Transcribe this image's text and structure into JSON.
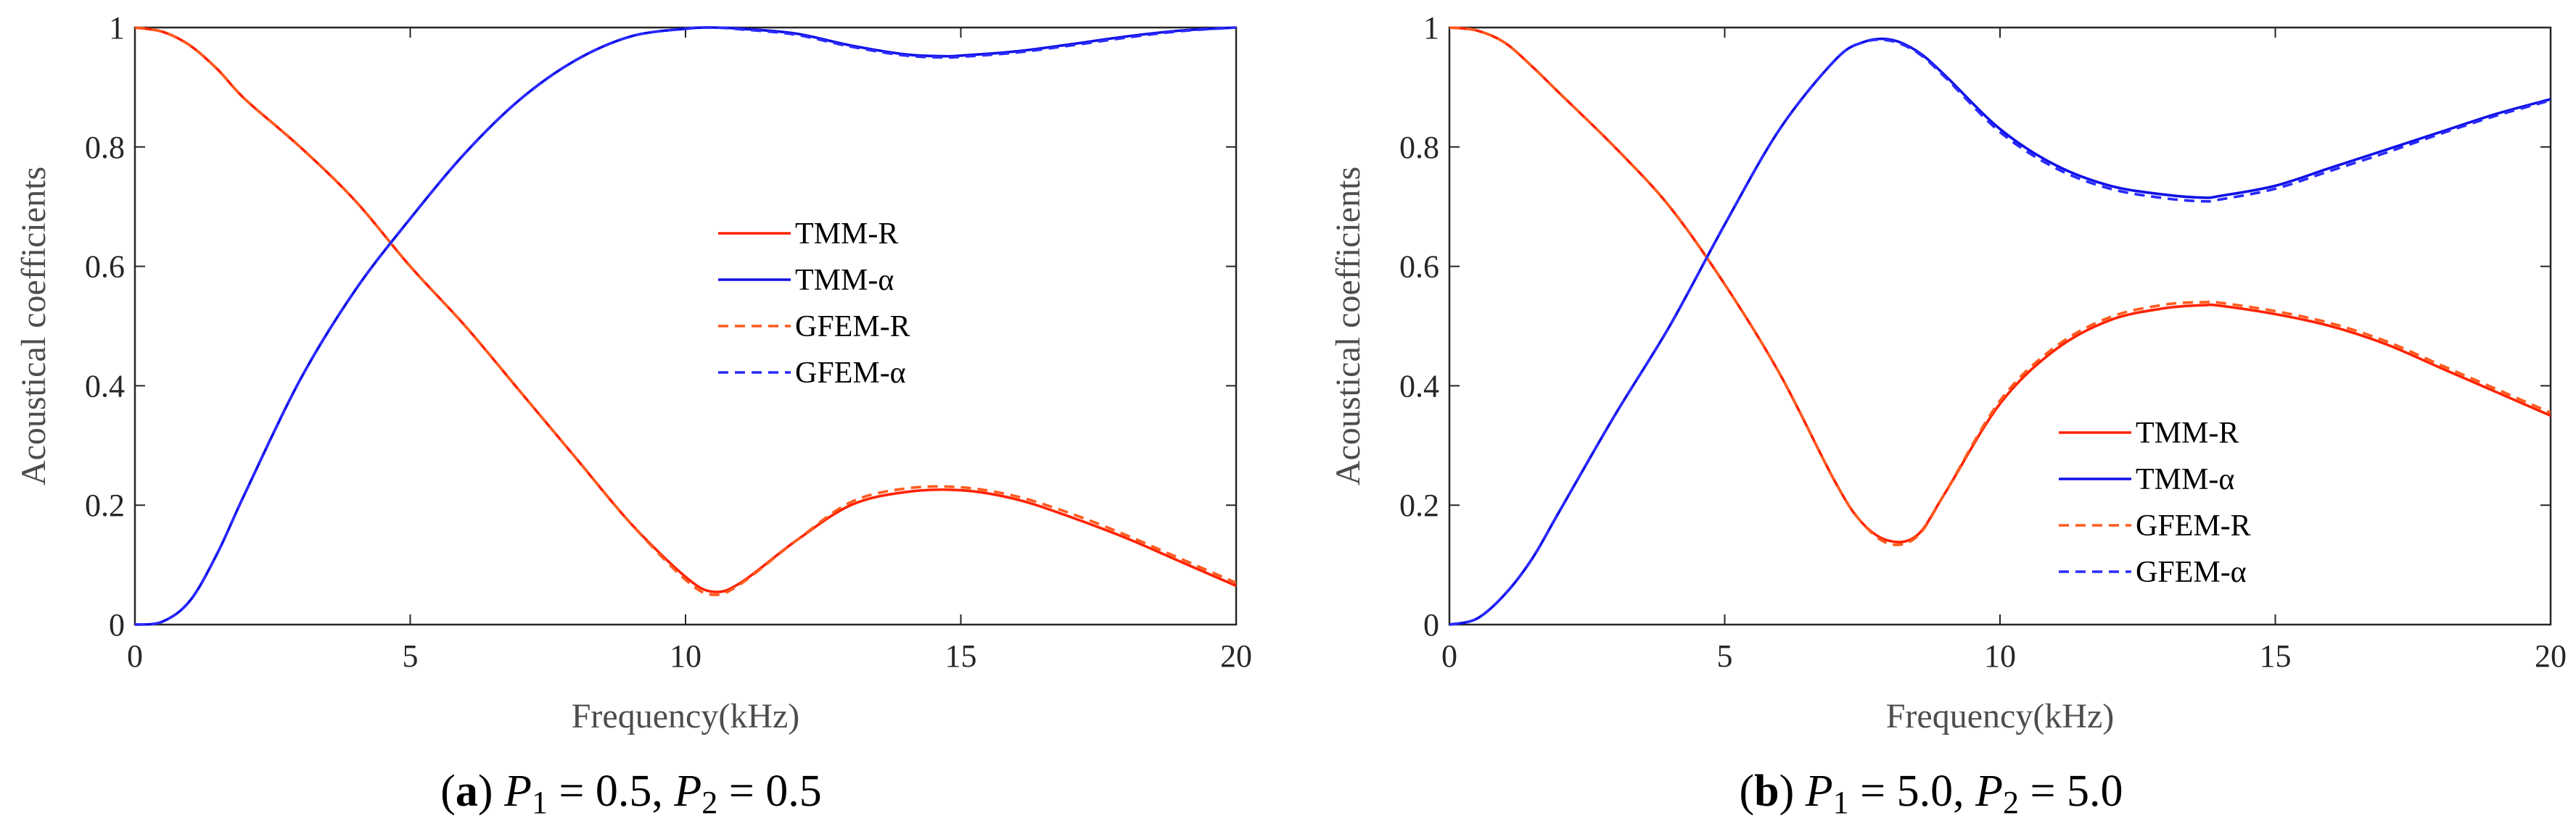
{
  "colors": {
    "R": "#ff2200",
    "alpha": "#1010e6",
    "GFEM_R": "#ff5a1e",
    "GFEM_alpha": "#2a2aff",
    "axis": "#262626",
    "label": "#4d4d4d"
  },
  "chart_data": [
    {
      "type": "line",
      "panel_letter": "a",
      "caption": {
        "p1_symbol": "P",
        "p1_sub": "1",
        "p1_value": " = 0.5, ",
        "p2_symbol": "P",
        "p2_sub": "2",
        "p2_value": " = 0.5"
      },
      "xlabel": "Frequency(kHz)",
      "ylabel": "Acoustical coefficients",
      "xlim": [
        0,
        20
      ],
      "ylim": [
        0,
        1
      ],
      "xticks": [
        0,
        5,
        10,
        15,
        20
      ],
      "yticks": [
        0,
        0.2,
        0.4,
        0.6,
        0.8,
        1
      ],
      "ytick_labels": [
        "0",
        "0.2",
        "0.4",
        "0.6",
        "0.8",
        "1"
      ],
      "legend_position": "center-right",
      "legend": [
        "TMM-R",
        "TMM-α",
        "GFEM-R",
        "GFEM-α"
      ],
      "series": [
        {
          "name": "TMM-R",
          "style": "solid",
          "color_key": "R",
          "x": [
            0,
            0.5,
            1,
            1.5,
            2,
            3,
            4,
            5,
            6,
            7,
            8,
            9,
            10,
            10.5,
            11,
            12,
            13,
            14,
            15,
            16,
            17,
            18,
            19,
            20
          ],
          "y": [
            1.0,
            0.993,
            0.97,
            0.93,
            0.88,
            0.8,
            0.71,
            0.6,
            0.5,
            0.39,
            0.28,
            0.17,
            0.08,
            0.055,
            0.07,
            0.14,
            0.2,
            0.222,
            0.225,
            0.21,
            0.18,
            0.145,
            0.105,
            0.065
          ]
        },
        {
          "name": "TMM-α",
          "style": "solid",
          "color_key": "alpha",
          "x": [
            0,
            0.5,
            1,
            1.5,
            2,
            3,
            4,
            5,
            6,
            7,
            8,
            9,
            10,
            10.5,
            11,
            12,
            13,
            14,
            14.7,
            15,
            16,
            17,
            18,
            19,
            20
          ],
          "y": [
            0.0,
            0.005,
            0.04,
            0.12,
            0.22,
            0.41,
            0.56,
            0.68,
            0.79,
            0.88,
            0.945,
            0.985,
            0.998,
            1.0,
            0.998,
            0.99,
            0.97,
            0.955,
            0.952,
            0.953,
            0.96,
            0.972,
            0.985,
            0.995,
            1.0
          ]
        },
        {
          "name": "GFEM-R",
          "style": "dashed",
          "color_key": "GFEM_R",
          "x": [
            0,
            0.5,
            1,
            1.5,
            2,
            3,
            4,
            5,
            6,
            7,
            8,
            9,
            10,
            10.5,
            11,
            12,
            13,
            14,
            15,
            16,
            17,
            18,
            19,
            20
          ],
          "y": [
            1.0,
            0.993,
            0.97,
            0.93,
            0.88,
            0.8,
            0.71,
            0.6,
            0.5,
            0.39,
            0.28,
            0.17,
            0.075,
            0.05,
            0.068,
            0.14,
            0.205,
            0.228,
            0.23,
            0.215,
            0.186,
            0.15,
            0.11,
            0.07
          ]
        },
        {
          "name": "GFEM-α",
          "style": "dashed",
          "color_key": "GFEM_alpha",
          "x": [
            0,
            0.5,
            1,
            1.5,
            2,
            3,
            4,
            5,
            6,
            7,
            8,
            9,
            10,
            10.5,
            11,
            12,
            13,
            14,
            14.7,
            15,
            16,
            17,
            18,
            19,
            20
          ],
          "y": [
            0.0,
            0.005,
            0.04,
            0.12,
            0.22,
            0.41,
            0.56,
            0.68,
            0.79,
            0.88,
            0.945,
            0.985,
            0.998,
            1.0,
            0.997,
            0.988,
            0.968,
            0.953,
            0.95,
            0.951,
            0.958,
            0.97,
            0.983,
            0.994,
            1.0
          ]
        }
      ]
    },
    {
      "type": "line",
      "panel_letter": "b",
      "caption": {
        "p1_symbol": "P",
        "p1_sub": "1",
        "p1_value": " = 5.0, ",
        "p2_symbol": "P",
        "p2_sub": "2",
        "p2_value": " = 5.0"
      },
      "xlabel": "Frequency(kHz)",
      "ylabel": "Acoustical coefficients",
      "xlim": [
        0,
        20
      ],
      "ylim": [
        0,
        1
      ],
      "xticks": [
        0,
        5,
        10,
        15,
        20
      ],
      "yticks": [
        0,
        0.2,
        0.4,
        0.6,
        0.8,
        1
      ],
      "ytick_labels": [
        "0",
        "0.2",
        "0.4",
        "0.6",
        "0.8",
        "1"
      ],
      "legend_position": "bottom-right",
      "legend": [
        "TMM-R",
        "TMM-α",
        "GFEM-R",
        "GFEM-α"
      ],
      "series": [
        {
          "name": "TMM-R",
          "style": "solid",
          "color_key": "R",
          "x": [
            0,
            0.5,
            1,
            1.5,
            2,
            3,
            4,
            5,
            6,
            7,
            7.5,
            8,
            8.5,
            9,
            10,
            11,
            12,
            13,
            13.7,
            14,
            15,
            16,
            17,
            18,
            19,
            20
          ],
          "y": [
            1.0,
            0.995,
            0.975,
            0.935,
            0.89,
            0.8,
            0.7,
            0.57,
            0.42,
            0.24,
            0.17,
            0.14,
            0.15,
            0.22,
            0.37,
            0.46,
            0.51,
            0.53,
            0.535,
            0.534,
            0.52,
            0.5,
            0.47,
            0.43,
            0.39,
            0.35
          ]
        },
        {
          "name": "TMM-α",
          "style": "solid",
          "color_key": "alpha",
          "x": [
            0,
            0.5,
            1,
            1.5,
            2,
            3,
            4,
            5,
            6,
            7,
            7.5,
            8,
            8.5,
            9,
            10,
            11,
            12,
            13,
            13.7,
            14,
            15,
            16,
            17,
            18,
            19,
            20
          ],
          "y": [
            0.0,
            0.01,
            0.05,
            0.11,
            0.19,
            0.35,
            0.5,
            0.67,
            0.83,
            0.945,
            0.975,
            0.98,
            0.96,
            0.92,
            0.83,
            0.77,
            0.735,
            0.72,
            0.715,
            0.718,
            0.735,
            0.765,
            0.795,
            0.825,
            0.855,
            0.88
          ]
        },
        {
          "name": "GFEM-R",
          "style": "dashed",
          "color_key": "GFEM_R",
          "x": [
            0,
            0.5,
            1,
            1.5,
            2,
            3,
            4,
            5,
            6,
            7,
            7.5,
            8,
            8.5,
            9,
            10,
            11,
            12,
            13,
            13.7,
            14,
            15,
            16,
            17,
            18,
            19,
            20
          ],
          "y": [
            1.0,
            0.995,
            0.975,
            0.935,
            0.89,
            0.8,
            0.7,
            0.57,
            0.42,
            0.24,
            0.17,
            0.135,
            0.148,
            0.22,
            0.375,
            0.465,
            0.515,
            0.536,
            0.54,
            0.539,
            0.525,
            0.505,
            0.475,
            0.435,
            0.395,
            0.355
          ]
        },
        {
          "name": "GFEM-α",
          "style": "dashed",
          "color_key": "GFEM_alpha",
          "x": [
            0,
            0.5,
            1,
            1.5,
            2,
            3,
            4,
            5,
            6,
            7,
            7.5,
            8,
            8.5,
            9,
            10,
            11,
            12,
            13,
            13.7,
            14,
            15,
            16,
            17,
            18,
            19,
            20
          ],
          "y": [
            0.0,
            0.01,
            0.05,
            0.11,
            0.19,
            0.35,
            0.5,
            0.67,
            0.83,
            0.945,
            0.975,
            0.978,
            0.958,
            0.917,
            0.825,
            0.765,
            0.73,
            0.714,
            0.709,
            0.712,
            0.73,
            0.76,
            0.79,
            0.822,
            0.852,
            0.878
          ]
        }
      ]
    }
  ]
}
